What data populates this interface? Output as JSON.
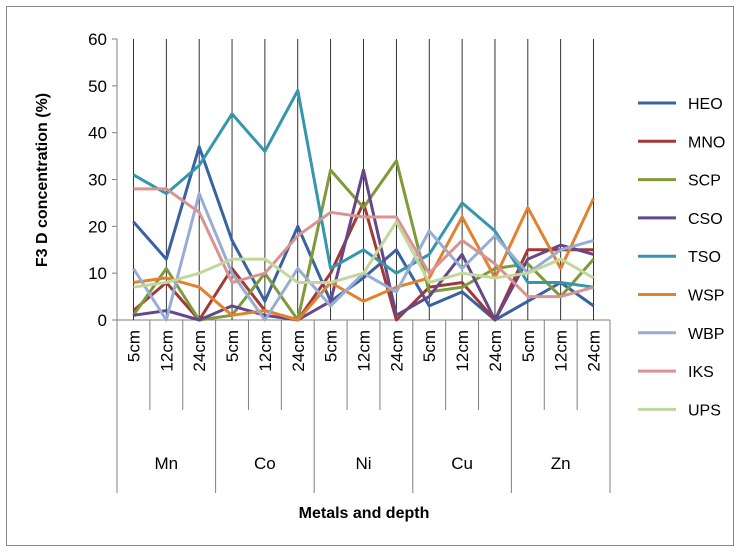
{
  "chart_data": {
    "type": "line",
    "title": "",
    "ylabel": "F3 D  concentration (%)",
    "xlabel": "Metals and depth",
    "ylim": [
      0,
      60
    ],
    "yticks": [
      0,
      10,
      20,
      30,
      40,
      50,
      60
    ],
    "categories": [
      "5cm",
      "12cm",
      "24cm",
      "5cm",
      "12cm",
      "24cm",
      "5cm",
      "12cm",
      "24cm",
      "5cm",
      "12cm",
      "24cm",
      "5cm",
      "12cm",
      "24cm"
    ],
    "groups": [
      "Mn",
      "Co",
      "Ni",
      "Cu",
      "Zn"
    ],
    "legend_position": "right",
    "series": [
      {
        "name": "HEO",
        "color": "#3a62a2",
        "values": [
          21,
          13,
          37,
          17,
          4,
          20,
          4,
          9,
          15,
          3,
          6,
          0,
          4,
          8,
          3
        ]
      },
      {
        "name": "MNO",
        "color": "#a13936",
        "values": [
          2,
          8,
          0,
          11,
          2,
          0,
          10,
          25,
          0,
          7,
          8,
          0,
          15,
          15,
          15
        ]
      },
      {
        "name": "SCP",
        "color": "#7e9a3c",
        "values": [
          1,
          11,
          0,
          1,
          10,
          0,
          32,
          24,
          34,
          6,
          7,
          11,
          12,
          5,
          13
        ]
      },
      {
        "name": "CSO",
        "color": "#65488c",
        "values": [
          1,
          2,
          0,
          3,
          1,
          0,
          4,
          32,
          1,
          5,
          14,
          0,
          13,
          16,
          14
        ]
      },
      {
        "name": "TSO",
        "color": "#3497ae",
        "values": [
          31,
          27,
          33,
          44,
          36,
          49,
          11,
          15,
          10,
          14,
          25,
          19,
          8,
          8,
          7
        ]
      },
      {
        "name": "WSP",
        "color": "#e2822f",
        "values": [
          8,
          9,
          7,
          1,
          2,
          0,
          8,
          4,
          7,
          9,
          22,
          9,
          24,
          11,
          26
        ]
      },
      {
        "name": "WBP",
        "color": "#98add4",
        "values": [
          11,
          0,
          27,
          10,
          0,
          11,
          3,
          10,
          6,
          19,
          11,
          18,
          10,
          15,
          17
        ]
      },
      {
        "name": "IKS",
        "color": "#d99491",
        "values": [
          28,
          28,
          23,
          8,
          10,
          18,
          23,
          22,
          22,
          10,
          17,
          12,
          5,
          5,
          7
        ]
      },
      {
        "name": "UPS",
        "color": "#c3d79d",
        "values": [
          7,
          8,
          10,
          13,
          13,
          8,
          8,
          10,
          21,
          8,
          10,
          9,
          10,
          13,
          9
        ]
      }
    ]
  }
}
